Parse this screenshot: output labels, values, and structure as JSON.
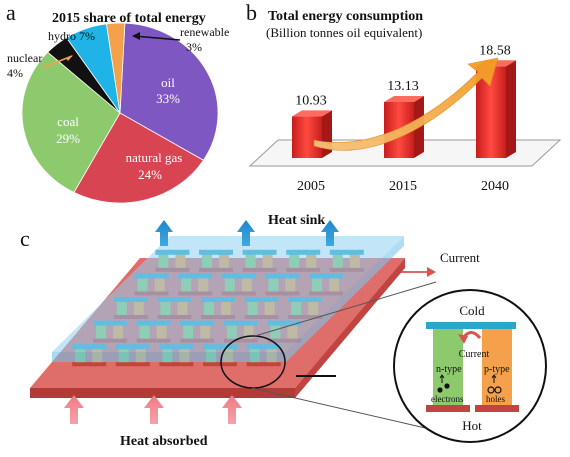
{
  "panel_a": {
    "letter": "a",
    "title": "2015 share of total energy",
    "slices": [
      {
        "name": "oil",
        "value": 33,
        "pct": "33%",
        "color": "#7e57c2"
      },
      {
        "name": "natural gas",
        "value": 24,
        "pct": "24%",
        "color": "#d94452"
      },
      {
        "name": "coal",
        "value": 29,
        "pct": "29%",
        "color": "#8dc96d"
      },
      {
        "name": "nuclear",
        "value": 4,
        "pct": "4%",
        "color": "#111111"
      },
      {
        "name": "hydro",
        "value": 7,
        "pct": "7%",
        "color": "#1fb3e8"
      },
      {
        "name": "renewable",
        "value": 3,
        "pct": "3%",
        "color": "#f5a04a"
      }
    ],
    "hydro_label": "hydro 7%"
  },
  "panel_b": {
    "letter": "b",
    "title": "Total energy consumption",
    "subtitle": "(Billion tonnes oil equivalent)",
    "bar_color": "#e8312f"
  },
  "chart_data": {
    "type": "bar",
    "categories": [
      "2005",
      "2015",
      "2040"
    ],
    "values": [
      10.93,
      13.13,
      18.58
    ],
    "value_labels": [
      "10.93",
      "13.13",
      "18.58"
    ],
    "title": "Total energy consumption",
    "ylabel": "",
    "xlabel": ""
  },
  "panel_c": {
    "letter": "c",
    "heat_sink": "Heat sink",
    "current": "Current",
    "heat_absorbed": "Heat absorbed",
    "inset": {
      "cold": "Cold",
      "hot": "Hot",
      "current": "Current",
      "n_type": "n-type",
      "p_type": "p-type",
      "electrons": "electrons",
      "holes": "holes"
    },
    "colors": {
      "sink": "#8fd0f2",
      "base": "#d9534f",
      "n_leg": "#8dc96d",
      "p_leg": "#f5a04a",
      "plate": "#2aa6c9"
    }
  }
}
